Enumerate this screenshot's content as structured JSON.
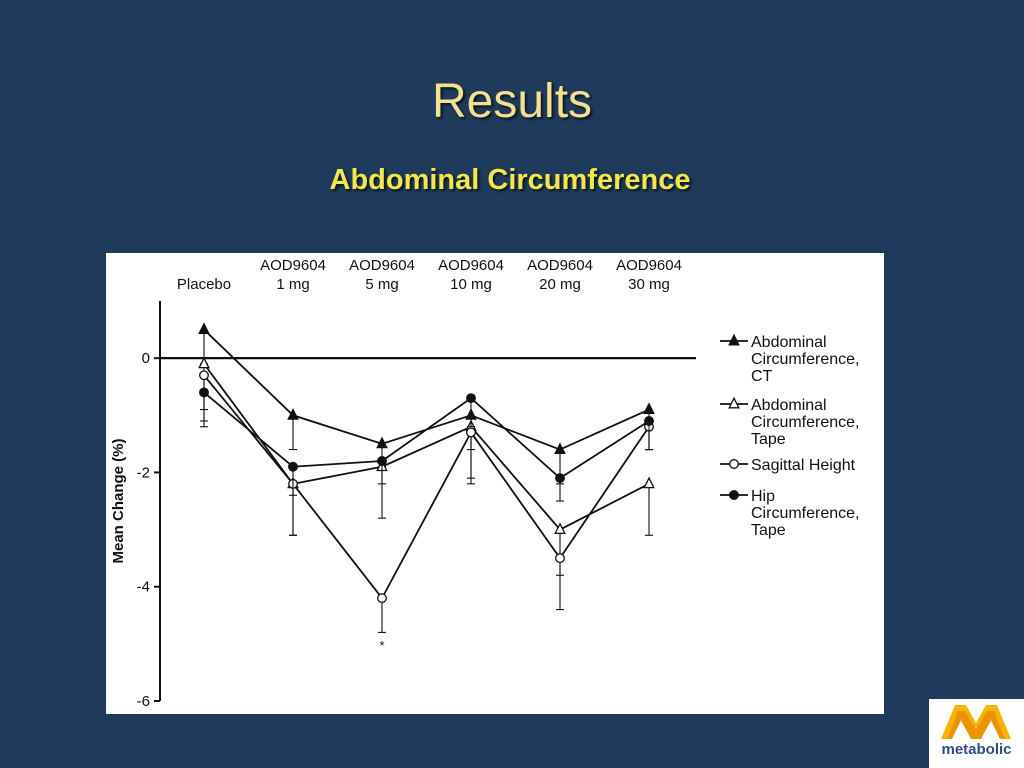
{
  "slide": {
    "title": "Results",
    "subtitle": "Abdominal Circumference"
  },
  "logo": {
    "text": "metabolic",
    "mark_colors": [
      "#f7b500",
      "#e07800"
    ]
  },
  "colors": {
    "background": "#1f3a5b",
    "title": "#f2e28e",
    "subtitle": "#f2e84a"
  },
  "chart_data": {
    "type": "line",
    "ylabel": "Mean Change (%)",
    "ylim": [
      -6,
      1
    ],
    "yticks": [
      0,
      -2,
      -4,
      -6
    ],
    "reference_line": 0,
    "categories": [
      [
        "Placebo"
      ],
      [
        "AOD9604",
        "1 mg"
      ],
      [
        "AOD9604",
        "5 mg"
      ],
      [
        "AOD9604",
        "10 mg"
      ],
      [
        "AOD9604",
        "20 mg"
      ],
      [
        "AOD9604",
        "30 mg"
      ]
    ],
    "series": [
      {
        "name": "Abdominal Circumference, CT",
        "legend_lines": [
          "Abdominal",
          "Circumference,",
          "CT"
        ],
        "marker": "triangle-filled",
        "values": [
          0.5,
          -1.0,
          -1.5,
          -1.0,
          -1.6,
          -0.9
        ],
        "errors": [
          0.6,
          0.6,
          0.4,
          0.6,
          0.6,
          0.7
        ]
      },
      {
        "name": "Abdominal Circumference, Tape",
        "legend_lines": [
          "Abdominal",
          "Circumference,",
          "Tape"
        ],
        "marker": "triangle-open",
        "values": [
          -0.1,
          -2.2,
          -1.9,
          -1.2,
          -3.0,
          -2.2
        ],
        "errors": [
          0.8,
          0.9,
          0.9,
          0.9,
          0.8,
          0.9
        ]
      },
      {
        "name": "Sagittal Height",
        "legend_lines": [
          "Sagittal Height"
        ],
        "marker": "circle-open",
        "values": [
          -0.3,
          -2.2,
          -4.2,
          -1.3,
          -3.5,
          -1.2
        ],
        "errors": [
          0.8,
          0.9,
          0.6,
          0.9,
          0.9,
          0.4
        ]
      },
      {
        "name": "Hip Circumference, Tape",
        "legend_lines": [
          "Hip",
          "Circumference,",
          "Tape"
        ],
        "marker": "circle-filled",
        "values": [
          -0.6,
          -1.9,
          -1.8,
          -0.7,
          -2.1,
          -1.1
        ],
        "errors": [
          0.6,
          0.5,
          0.4,
          0.5,
          0.4,
          0.5
        ]
      }
    ],
    "annotations": [
      {
        "text": "*",
        "category_index": 2,
        "value": -4.9
      }
    ],
    "grid": false,
    "legend_position": "right"
  }
}
